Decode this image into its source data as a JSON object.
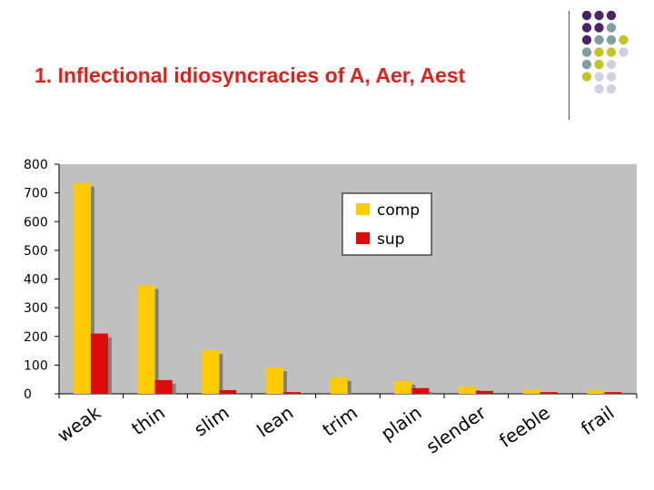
{
  "slide": {
    "title": "1. Inflectional idiosyncracies of A, Aer, Aest"
  },
  "decoration": {
    "dot_colors": [
      "#4b2367",
      "#7f9fa1",
      "#c4c225",
      "#d0d0e2"
    ]
  },
  "chart_data": {
    "type": "bar",
    "categories": [
      "weak",
      "thin",
      "slim",
      "lean",
      "trim",
      "plain",
      "slender",
      "feeble",
      "frail"
    ],
    "series": [
      {
        "name": "comp",
        "color": "#fecb00",
        "values": [
          735,
          378,
          152,
          92,
          58,
          45,
          25,
          14,
          12
        ]
      },
      {
        "name": "sup",
        "color": "#dd0a0a",
        "values": [
          210,
          48,
          13,
          6,
          0,
          20,
          10,
          6,
          6
        ]
      }
    ],
    "ylim": [
      0,
      800
    ],
    "yticks": [
      0,
      100,
      200,
      300,
      400,
      500,
      600,
      700,
      800
    ],
    "grid": false,
    "legend": "top-center",
    "plot_background": "#c0c0c0"
  }
}
